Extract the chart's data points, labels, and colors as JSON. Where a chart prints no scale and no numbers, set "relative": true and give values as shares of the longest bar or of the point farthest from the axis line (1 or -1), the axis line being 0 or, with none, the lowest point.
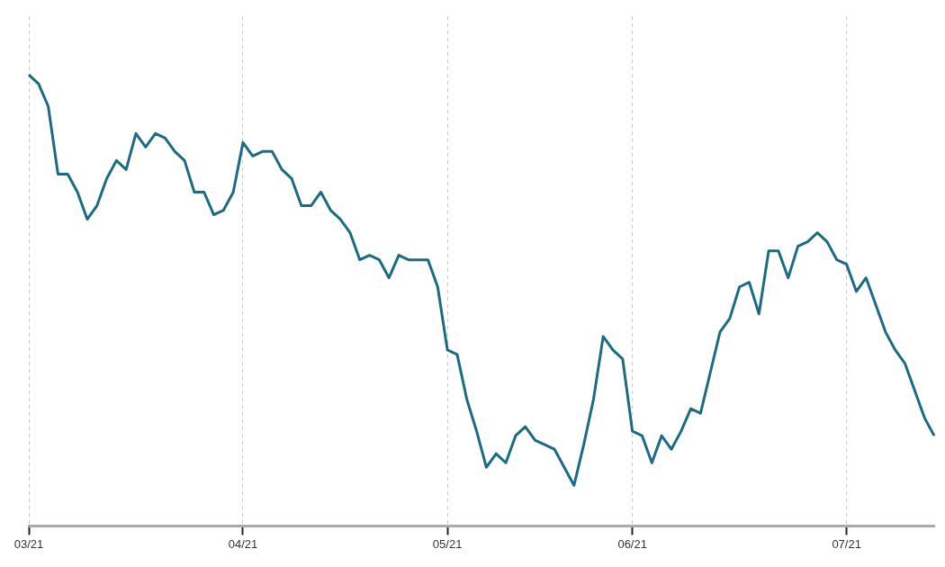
{
  "chart_data": {
    "type": "line",
    "relative": true,
    "grid": "x",
    "line_style": "solid",
    "marker": "none",
    "categories": [
      "03/21",
      null,
      null,
      null,
      null,
      null,
      null,
      null,
      null,
      null,
      null,
      null,
      null,
      null,
      null,
      null,
      null,
      null,
      null,
      null,
      null,
      null,
      "04/21",
      null,
      null,
      null,
      null,
      null,
      null,
      null,
      null,
      null,
      null,
      null,
      null,
      null,
      null,
      null,
      null,
      null,
      null,
      null,
      null,
      "05/21",
      null,
      null,
      null,
      null,
      null,
      null,
      null,
      null,
      null,
      null,
      null,
      null,
      null,
      null,
      null,
      null,
      null,
      null,
      "06/21",
      null,
      null,
      null,
      null,
      null,
      null,
      null,
      null,
      null,
      null,
      null,
      null,
      null,
      null,
      null,
      null,
      null,
      null,
      null,
      null,
      null,
      "07/21",
      null,
      null,
      null,
      null,
      null,
      null,
      null,
      null,
      null
    ],
    "series": [
      {
        "color": "#1c6b84",
        "values": [
          1.0,
          0.98,
          0.93,
          0.78,
          0.78,
          0.74,
          0.68,
          0.71,
          0.77,
          0.81,
          0.79,
          0.87,
          0.84,
          0.87,
          0.86,
          0.83,
          0.81,
          0.74,
          0.74,
          0.69,
          0.7,
          0.74,
          0.85,
          0.82,
          0.83,
          0.83,
          0.79,
          0.77,
          0.71,
          0.71,
          0.74,
          0.7,
          0.68,
          0.65,
          0.59,
          0.6,
          0.59,
          0.55,
          0.6,
          0.59,
          0.59,
          0.59,
          0.53,
          0.39,
          0.38,
          0.28,
          0.21,
          0.13,
          0.16,
          0.14,
          0.2,
          0.22,
          0.19,
          0.18,
          0.17,
          0.13,
          0.09,
          0.18,
          0.28,
          0.42,
          0.39,
          0.37,
          0.21,
          0.2,
          0.14,
          0.2,
          0.17,
          0.21,
          0.26,
          0.25,
          0.34,
          0.43,
          0.46,
          0.53,
          0.54,
          0.47,
          0.61,
          0.61,
          0.55,
          0.62,
          0.63,
          0.65,
          0.63,
          0.59,
          0.58,
          0.52,
          0.55,
          0.49,
          0.43,
          0.39,
          0.36,
          0.3,
          0.24,
          0.2
        ]
      }
    ]
  }
}
